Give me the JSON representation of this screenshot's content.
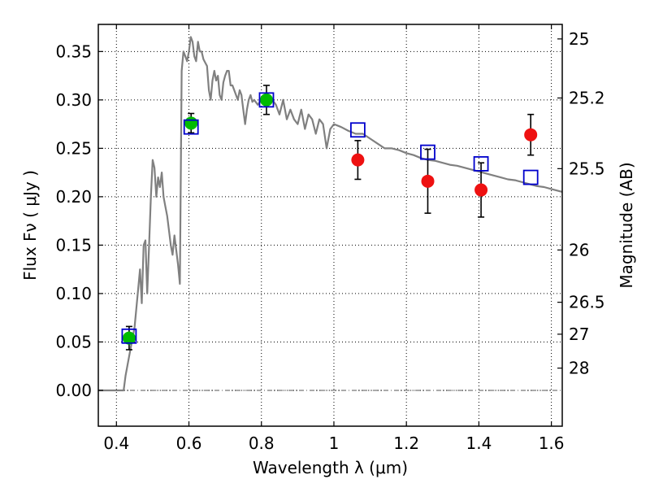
{
  "chart_data": {
    "type": "scatter",
    "xlabel": "Wavelength  λ (μm)",
    "ylabel": "Flux  Fν  ( μJy )",
    "y2label": "Magnitude (AB)",
    "xlim": [
      0.35,
      1.63
    ],
    "ylim": [
      -0.037,
      0.378
    ],
    "grid": true,
    "x_ticks": [
      0.4,
      0.6,
      0.8,
      1.0,
      1.2,
      1.4,
      1.6
    ],
    "x_tick_labels": [
      "0.4",
      "0.6",
      "0.8",
      "1",
      "1.2",
      "1.4",
      "1.6"
    ],
    "y_ticks": [
      0.0,
      0.05,
      0.1,
      0.15,
      0.2,
      0.25,
      0.3,
      0.35
    ],
    "y_tick_labels": [
      "0.00",
      "0.05",
      "0.10",
      "0.15",
      "0.20",
      "0.25",
      "0.30",
      "0.35"
    ],
    "y2_ticks": [
      {
        "label": "25",
        "flux": 0.363
      },
      {
        "label": "25.2",
        "flux": 0.302
      },
      {
        "label": "25.5",
        "flux": 0.229
      },
      {
        "label": "26",
        "flux": 0.145
      },
      {
        "label": "26.5",
        "flux": 0.091
      },
      {
        "label": "27",
        "flux": 0.058
      },
      {
        "label": "28",
        "flux": 0.023
      }
    ],
    "colors": {
      "sed": "#808080",
      "green": "#00bb00",
      "red": "#ee1111",
      "model": "#0000cc",
      "errorbar": "#000000",
      "grid": "#000000",
      "zero_line": "#555555"
    },
    "sed_curve": [
      [
        0.35,
        0.0
      ],
      [
        0.41,
        0.0
      ],
      [
        0.42,
        0.0
      ],
      [
        0.425,
        0.015
      ],
      [
        0.43,
        0.025
      ],
      [
        0.44,
        0.045
      ],
      [
        0.45,
        0.065
      ],
      [
        0.46,
        0.105
      ],
      [
        0.465,
        0.125
      ],
      [
        0.47,
        0.09
      ],
      [
        0.475,
        0.15
      ],
      [
        0.48,
        0.155
      ],
      [
        0.485,
        0.1
      ],
      [
        0.49,
        0.15
      ],
      [
        0.495,
        0.2
      ],
      [
        0.5,
        0.238
      ],
      [
        0.505,
        0.23
      ],
      [
        0.51,
        0.2
      ],
      [
        0.515,
        0.22
      ],
      [
        0.52,
        0.21
      ],
      [
        0.525,
        0.225
      ],
      [
        0.53,
        0.2
      ],
      [
        0.535,
        0.19
      ],
      [
        0.54,
        0.18
      ],
      [
        0.545,
        0.165
      ],
      [
        0.55,
        0.15
      ],
      [
        0.555,
        0.14
      ],
      [
        0.56,
        0.16
      ],
      [
        0.565,
        0.145
      ],
      [
        0.57,
        0.13
      ],
      [
        0.575,
        0.11
      ],
      [
        0.58,
        0.33
      ],
      [
        0.585,
        0.35
      ],
      [
        0.59,
        0.345
      ],
      [
        0.595,
        0.34
      ],
      [
        0.6,
        0.35
      ],
      [
        0.605,
        0.365
      ],
      [
        0.61,
        0.36
      ],
      [
        0.615,
        0.345
      ],
      [
        0.62,
        0.34
      ],
      [
        0.625,
        0.36
      ],
      [
        0.63,
        0.35
      ],
      [
        0.635,
        0.35
      ],
      [
        0.64,
        0.342
      ],
      [
        0.65,
        0.335
      ],
      [
        0.655,
        0.31
      ],
      [
        0.66,
        0.3
      ],
      [
        0.665,
        0.32
      ],
      [
        0.67,
        0.33
      ],
      [
        0.675,
        0.32
      ],
      [
        0.68,
        0.325
      ],
      [
        0.685,
        0.305
      ],
      [
        0.69,
        0.3
      ],
      [
        0.695,
        0.318
      ],
      [
        0.7,
        0.325
      ],
      [
        0.705,
        0.33
      ],
      [
        0.71,
        0.33
      ],
      [
        0.715,
        0.315
      ],
      [
        0.72,
        0.315
      ],
      [
        0.725,
        0.31
      ],
      [
        0.73,
        0.305
      ],
      [
        0.735,
        0.3
      ],
      [
        0.74,
        0.31
      ],
      [
        0.745,
        0.305
      ],
      [
        0.75,
        0.29
      ],
      [
        0.755,
        0.275
      ],
      [
        0.76,
        0.29
      ],
      [
        0.765,
        0.3
      ],
      [
        0.77,
        0.305
      ],
      [
        0.775,
        0.298
      ],
      [
        0.78,
        0.3
      ],
      [
        0.79,
        0.295
      ],
      [
        0.8,
        0.3
      ],
      [
        0.81,
        0.296
      ],
      [
        0.82,
        0.3
      ],
      [
        0.83,
        0.3
      ],
      [
        0.84,
        0.295
      ],
      [
        0.85,
        0.285
      ],
      [
        0.86,
        0.3
      ],
      [
        0.87,
        0.28
      ],
      [
        0.88,
        0.29
      ],
      [
        0.89,
        0.28
      ],
      [
        0.9,
        0.275
      ],
      [
        0.91,
        0.29
      ],
      [
        0.92,
        0.27
      ],
      [
        0.93,
        0.285
      ],
      [
        0.94,
        0.28
      ],
      [
        0.95,
        0.265
      ],
      [
        0.96,
        0.28
      ],
      [
        0.97,
        0.275
      ],
      [
        0.98,
        0.25
      ],
      [
        0.99,
        0.27
      ],
      [
        1.0,
        0.275
      ],
      [
        1.02,
        0.272
      ],
      [
        1.04,
        0.268
      ],
      [
        1.06,
        0.265
      ],
      [
        1.08,
        0.265
      ],
      [
        1.1,
        0.26
      ],
      [
        1.12,
        0.255
      ],
      [
        1.14,
        0.25
      ],
      [
        1.16,
        0.25
      ],
      [
        1.18,
        0.248
      ],
      [
        1.2,
        0.245
      ],
      [
        1.22,
        0.243
      ],
      [
        1.24,
        0.24
      ],
      [
        1.26,
        0.238
      ],
      [
        1.28,
        0.237
      ],
      [
        1.3,
        0.235
      ],
      [
        1.32,
        0.233
      ],
      [
        1.34,
        0.232
      ],
      [
        1.36,
        0.23
      ],
      [
        1.38,
        0.228
      ],
      [
        1.4,
        0.226
      ],
      [
        1.42,
        0.224
      ],
      [
        1.44,
        0.222
      ],
      [
        1.46,
        0.22
      ],
      [
        1.48,
        0.218
      ],
      [
        1.5,
        0.217
      ],
      [
        1.52,
        0.215
      ],
      [
        1.54,
        0.213
      ],
      [
        1.56,
        0.211
      ],
      [
        1.58,
        0.21
      ],
      [
        1.6,
        0.208
      ],
      [
        1.63,
        0.205
      ]
    ],
    "green_points": [
      {
        "x": 0.435,
        "y": 0.054,
        "err": 0.012
      },
      {
        "x": 0.606,
        "y": 0.276,
        "err": 0.01
      },
      {
        "x": 0.814,
        "y": 0.3,
        "err": 0.015
      }
    ],
    "red_points": [
      {
        "x": 1.066,
        "y": 0.238,
        "err": 0.02
      },
      {
        "x": 1.259,
        "y": 0.216,
        "err": 0.033
      },
      {
        "x": 1.406,
        "y": 0.207,
        "err": 0.028
      },
      {
        "x": 1.543,
        "y": 0.264,
        "err": 0.021
      }
    ],
    "model_points": [
      {
        "x": 0.435,
        "y": 0.056
      },
      {
        "x": 0.606,
        "y": 0.272
      },
      {
        "x": 0.814,
        "y": 0.3
      },
      {
        "x": 1.066,
        "y": 0.269
      },
      {
        "x": 1.259,
        "y": 0.246
      },
      {
        "x": 1.406,
        "y": 0.234
      },
      {
        "x": 1.543,
        "y": 0.22
      }
    ]
  }
}
